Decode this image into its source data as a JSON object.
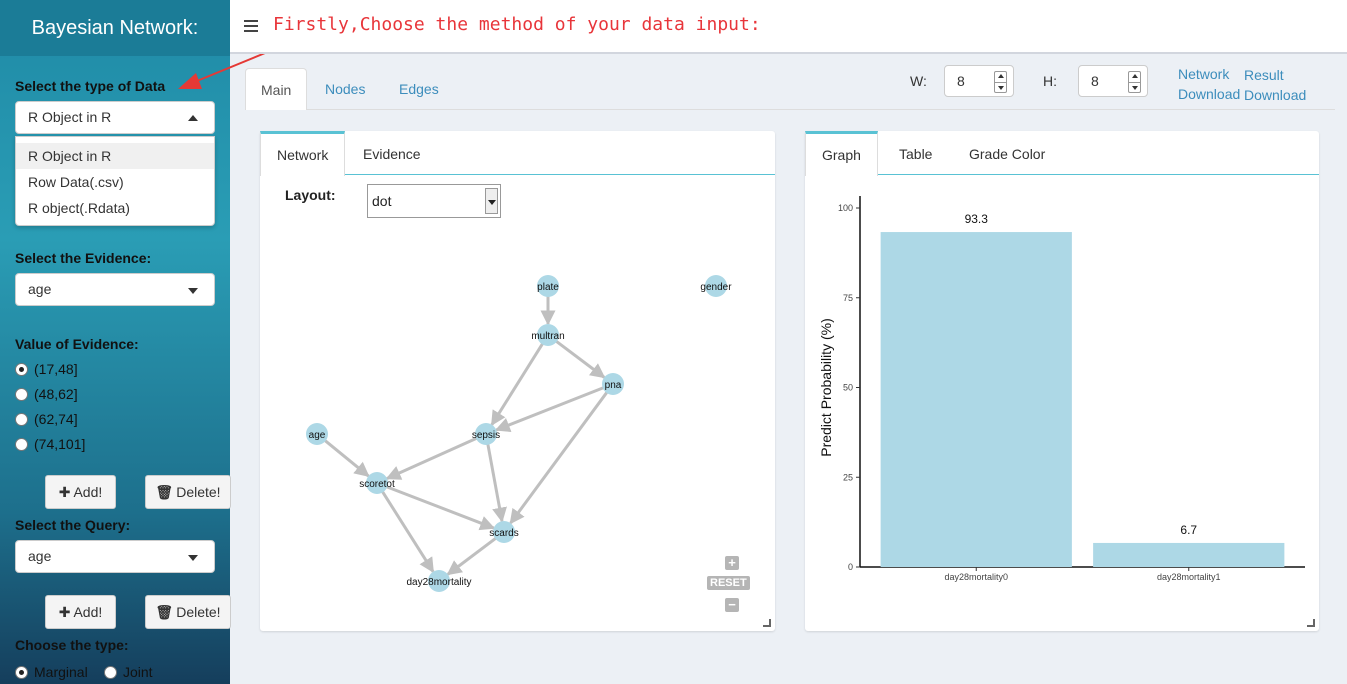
{
  "sidebar": {
    "title": "Bayesian Network:",
    "data_type": {
      "label": "Select the type of Data",
      "selected": "R Object in R",
      "options": [
        "R Object in R",
        "Row Data(.csv)",
        "R object(.Rdata)"
      ]
    },
    "evidence": {
      "label": "Select the Evidence:",
      "selected": "age"
    },
    "evidence_value": {
      "label": "Value of Evidence:",
      "options": [
        "(17,48]",
        "(48,62]",
        "(62,74]",
        "(74,101]"
      ],
      "checked_index": 0
    },
    "add_label": "Add!",
    "delete_label": "Delete!",
    "query": {
      "label": "Select the Query:",
      "selected": "age"
    },
    "type": {
      "label": "Choose the type:",
      "options": [
        "Marginal",
        "Joint"
      ],
      "checked_index": 0
    }
  },
  "header": {
    "message": "Firstly,Choose the method of your data input:"
  },
  "main_tabs": [
    "Main",
    "Nodes",
    "Edges"
  ],
  "size_controls": {
    "w_label": "W:",
    "w_value": "8",
    "h_label": "H:",
    "h_value": "8"
  },
  "downloads": {
    "network_1": "Network",
    "network_2": "Download",
    "result_1": "Result",
    "result_2": "Download"
  },
  "network_panel": {
    "tabs": [
      "Network",
      "Evidence"
    ],
    "layout_label": "Layout:",
    "layout_value": "dot",
    "reset_label": "RESET",
    "node_color": "#add8e6",
    "edge_color": "#bfbfbf",
    "nodes": [
      "plate",
      "gender",
      "multran",
      "pna",
      "age",
      "sepsis",
      "scoretot",
      "scards",
      "day28mortality"
    ],
    "edges": [
      [
        "plate",
        "multran"
      ],
      [
        "multran",
        "pna"
      ],
      [
        "multran",
        "sepsis"
      ],
      [
        "pna",
        "sepsis"
      ],
      [
        "pna",
        "scards"
      ],
      [
        "age",
        "scoretot"
      ],
      [
        "sepsis",
        "scoretot"
      ],
      [
        "sepsis",
        "scards"
      ],
      [
        "scoretot",
        "scards"
      ],
      [
        "scoretot",
        "day28mortality"
      ],
      [
        "scards",
        "day28mortality"
      ]
    ]
  },
  "graph_panel": {
    "tabs": [
      "Graph",
      "Table",
      "Grade Color"
    ]
  },
  "chart_data": {
    "type": "bar",
    "categories": [
      "day28mortality0",
      "day28mortality1"
    ],
    "values": [
      93.3,
      6.7
    ],
    "data_labels": [
      "93.3",
      "6.7"
    ],
    "ylabel": "Predict  Probability (%)",
    "xlabel": "",
    "ylim": [
      0,
      100
    ],
    "yticks": [
      0,
      25,
      50,
      75,
      100
    ],
    "bar_color": "#add8e6",
    "grid": false
  }
}
